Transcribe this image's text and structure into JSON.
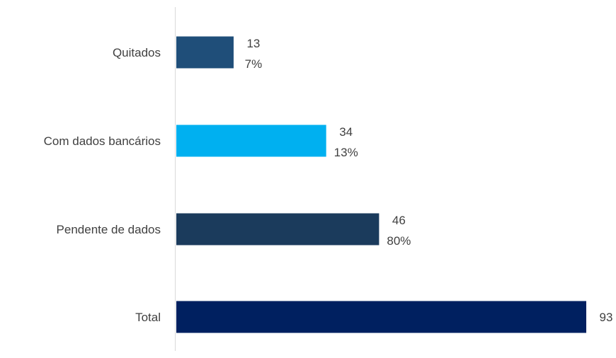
{
  "chart_data": {
    "type": "bar",
    "orientation": "horizontal",
    "categories": [
      "Quitados",
      "Com dados bancários",
      "Pendente de dados",
      "Total"
    ],
    "values": [
      13,
      34,
      46,
      93
    ],
    "percent_labels": [
      "7%",
      "13%",
      "80%",
      ""
    ],
    "colors": [
      "#1F4E79",
      "#00B0F0",
      "#1B3B5C",
      "#002060"
    ],
    "title": "",
    "xlabel": "",
    "ylabel": "",
    "xlim": [
      0,
      93
    ],
    "grid": false,
    "legend": "none"
  }
}
